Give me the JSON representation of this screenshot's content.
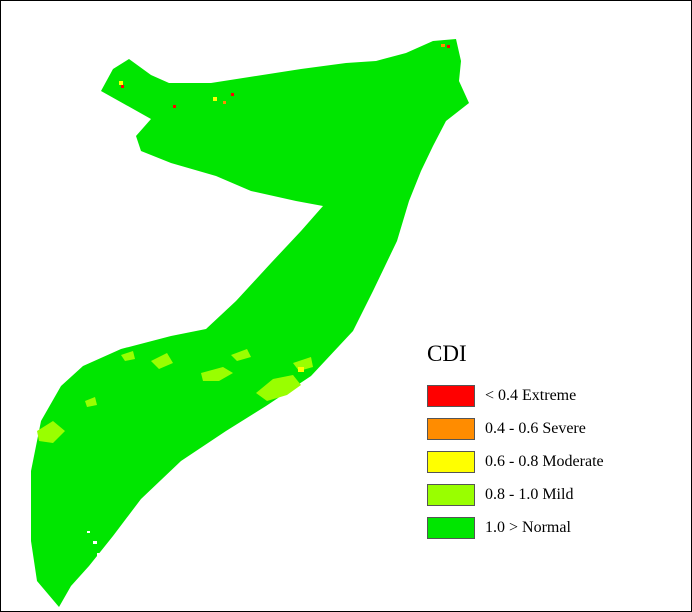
{
  "legend": {
    "title": "CDI",
    "classes": [
      {
        "label": "< 0.4 Extreme",
        "color": "#ff0000"
      },
      {
        "label": "0.4 - 0.6 Severe",
        "color": "#ff8c00"
      },
      {
        "label": "0.6 - 0.8 Moderate",
        "color": "#ffff00"
      },
      {
        "label": "0.8 - 1.0 Mild",
        "color": "#99ff00"
      },
      {
        "label": "1.0 > Normal",
        "color": "#00e600"
      }
    ]
  }
}
